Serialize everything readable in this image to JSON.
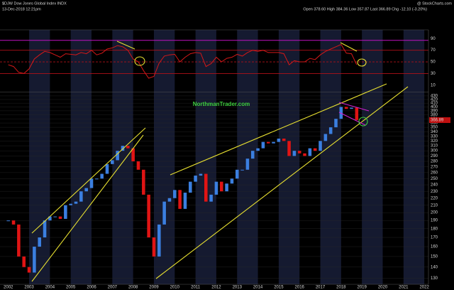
{
  "header": {
    "symbol": "$DJW Dow Jones Global Index INDX",
    "timestamp": "13-Dec-2018 12:21pm",
    "quote": "Open 378.60 High 384.36 Low 357.87 Last 366.89 Chg -12.10 (-3.20%)",
    "source": "@ StockCharts.com"
  },
  "watermark": "NorthmanTrader.com",
  "chart_data": {
    "type": "candlestick",
    "x": [
      2002,
      2002.25,
      2002.5,
      2002.75,
      2003,
      2003.25,
      2003.5,
      2003.75,
      2004,
      2004.25,
      2004.5,
      2004.75,
      2005,
      2005.25,
      2005.5,
      2005.75,
      2006,
      2006.25,
      2006.5,
      2006.75,
      2007,
      2007.25,
      2007.5,
      2007.75,
      2008,
      2008.25,
      2008.5,
      2008.75,
      2009,
      2009.25,
      2009.5,
      2009.75,
      2010,
      2010.25,
      2010.5,
      2010.75,
      2011,
      2011.25,
      2011.5,
      2011.75,
      2012,
      2012.25,
      2012.5,
      2012.75,
      2013,
      2013.25,
      2013.5,
      2013.75,
      2014,
      2014.25,
      2014.5,
      2014.75,
      2015,
      2015.25,
      2015.5,
      2015.75,
      2016,
      2016.25,
      2016.5,
      2016.75,
      2017,
      2017.25,
      2017.5,
      2017.75,
      2018,
      2018.25,
      2018.5,
      2018.75
    ],
    "close": [
      190,
      185,
      150,
      140,
      135,
      160,
      170,
      190,
      195,
      195,
      192,
      210,
      212,
      215,
      230,
      235,
      250,
      250,
      258,
      275,
      282,
      300,
      310,
      305,
      280,
      265,
      225,
      170,
      150,
      185,
      215,
      220,
      232,
      205,
      228,
      245,
      255,
      258,
      215,
      225,
      245,
      230,
      242,
      250,
      265,
      265,
      285,
      300,
      305,
      318,
      315,
      318,
      325,
      320,
      290,
      300,
      295,
      290,
      305,
      300,
      320,
      335,
      350,
      370,
      400,
      395,
      398,
      367
    ],
    "up_color": "#3b7fe0",
    "down_color": "#e01414",
    "xlim": [
      2001.6,
      2022.2
    ],
    "xticks": [
      2002,
      2003,
      2004,
      2005,
      2006,
      2007,
      2008,
      2009,
      2010,
      2011,
      2012,
      2013,
      2014,
      2015,
      2016,
      2017,
      2018,
      2019,
      2020,
      2021,
      2022
    ],
    "ylim": [
      125,
      440
    ],
    "log": true,
    "yticks": [
      130,
      140,
      150,
      160,
      170,
      180,
      190,
      200,
      210,
      220,
      230,
      240,
      250,
      260,
      270,
      280,
      290,
      300,
      310,
      320,
      330,
      340,
      350,
      360,
      370,
      380,
      390,
      400,
      410,
      420,
      430
    ],
    "last_tick": {
      "value": 366.89,
      "label": "366.89"
    },
    "indicator": {
      "type": "line",
      "color": "#d41818",
      "values": [
        45,
        42,
        32,
        30,
        38,
        55,
        62,
        68,
        66,
        62,
        58,
        64,
        63,
        62,
        66,
        64,
        70,
        62,
        65,
        72,
        74,
        78,
        76,
        70,
        55,
        50,
        35,
        22,
        25,
        48,
        60,
        62,
        63,
        50,
        58,
        64,
        66,
        65,
        42,
        47,
        58,
        50,
        56,
        58,
        63,
        60,
        66,
        70,
        68,
        70,
        66,
        66,
        66,
        64,
        45,
        52,
        50,
        50,
        56,
        54,
        62,
        68,
        72,
        76,
        80,
        65,
        64,
        45
      ],
      "ylim": [
        0,
        105
      ],
      "yticks": [
        10,
        30,
        50,
        70,
        90
      ],
      "levels": [
        30,
        50,
        70,
        87
      ],
      "level_colors": [
        "#b01018",
        "#b01018",
        "#b01018",
        "#c010c0"
      ],
      "level_dashed": [
        false,
        true,
        false,
        false
      ]
    }
  }
}
